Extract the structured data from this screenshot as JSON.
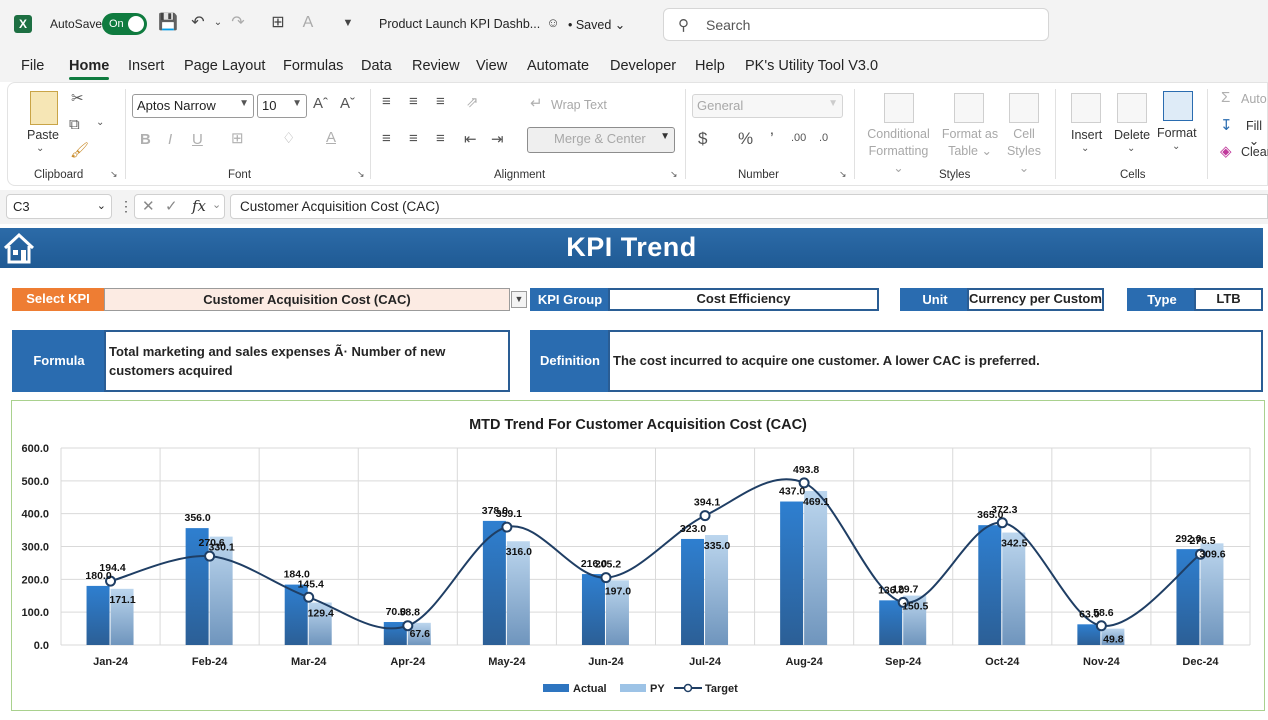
{
  "titlebar": {
    "autosave_label": "AutoSave",
    "autosave_state": "On",
    "doc_title": "Product Launch KPI Dashb...",
    "saved_label": "• Saved",
    "search_placeholder": "Search"
  },
  "menu": {
    "tabs": [
      {
        "label": "File"
      },
      {
        "label": "Home"
      },
      {
        "label": "Insert"
      },
      {
        "label": "Page Layout"
      },
      {
        "label": "Formulas"
      },
      {
        "label": "Data"
      },
      {
        "label": "Review"
      },
      {
        "label": "View"
      },
      {
        "label": "Automate"
      },
      {
        "label": "Developer"
      },
      {
        "label": "Help"
      },
      {
        "label": "PK's Utility Tool V3.0"
      }
    ],
    "active_tab": "Home"
  },
  "ribbon": {
    "clipboard": {
      "label": "Clipboard",
      "paste": "Paste"
    },
    "font": {
      "label": "Font",
      "font_name": "Aptos Narrow",
      "font_size": "10"
    },
    "alignment": {
      "label": "Alignment",
      "wrap_text": "Wrap Text",
      "merge_center": "Merge & Center"
    },
    "number": {
      "label": "Number",
      "format": "General"
    },
    "styles": {
      "label": "Styles",
      "conditional_1": "Conditional",
      "conditional_2": "Formatting",
      "format_as_1": "Format as",
      "format_as_2": "Table",
      "cell_styles_1": "Cell",
      "cell_styles_2": "Styles"
    },
    "cells": {
      "label": "Cells",
      "insert": "Insert",
      "delete": "Delete",
      "format": "Format"
    },
    "editing": {
      "autosum": "Auto",
      "fill": "Fill",
      "clear": "Clear"
    }
  },
  "formula_bar": {
    "cell_ref": "C3",
    "content": "Customer Acquisition Cost (CAC)"
  },
  "sheet": {
    "banner_title": "KPI Trend",
    "select_kpi_label": "Select KPI",
    "select_kpi_value": "Customer Acquisition Cost (CAC)",
    "kpi_group_label": "KPI Group",
    "kpi_group_value": "Cost Efficiency",
    "unit_label": "Unit",
    "unit_value": "Currency per Custome",
    "type_label": "Type",
    "type_value": "LTB",
    "formula_label": "Formula",
    "formula_value": "Total marketing and sales expenses Ã· Number of new customers acquired",
    "definition_label": "Definition",
    "definition_value": "The cost incurred to acquire one customer. A lower CAC is preferred."
  },
  "colors": {
    "actual": "#2e75c0",
    "py": "#9dc3e6",
    "target_line": "#1f3e64",
    "banner": "#1f5a94",
    "select_label": "#ee7d33",
    "label_blue": "#2a6cb0"
  },
  "chart_data": {
    "type": "bar",
    "title": "MTD Trend For Customer Acquisition Cost (CAC)",
    "categories": [
      "Jan-24",
      "Feb-24",
      "Mar-24",
      "Apr-24",
      "May-24",
      "Jun-24",
      "Jul-24",
      "Aug-24",
      "Sep-24",
      "Oct-24",
      "Nov-24",
      "Dec-24"
    ],
    "series": [
      {
        "name": "Actual",
        "type": "bar",
        "values": [
          180.0,
          356.0,
          184.0,
          70.0,
          378.0,
          216.0,
          323.0,
          437.0,
          136.0,
          365.0,
          63.0,
          292.0
        ]
      },
      {
        "name": "PY",
        "type": "bar",
        "values": [
          171.1,
          330.1,
          129.4,
          67.6,
          316.0,
          197.0,
          335.0,
          469.1,
          150.5,
          342.5,
          49.8,
          309.6
        ]
      },
      {
        "name": "Target",
        "type": "line",
        "values": [
          194.4,
          270.6,
          145.4,
          58.8,
          359.1,
          205.2,
          394.1,
          493.8,
          129.7,
          372.3,
          58.6,
          276.5
        ]
      }
    ],
    "ylim": [
      0,
      600
    ],
    "yticks": [
      "0.0",
      "100.0",
      "200.0",
      "300.0",
      "400.0",
      "500.0",
      "600.0"
    ],
    "grid": true,
    "legend": "bottom"
  }
}
